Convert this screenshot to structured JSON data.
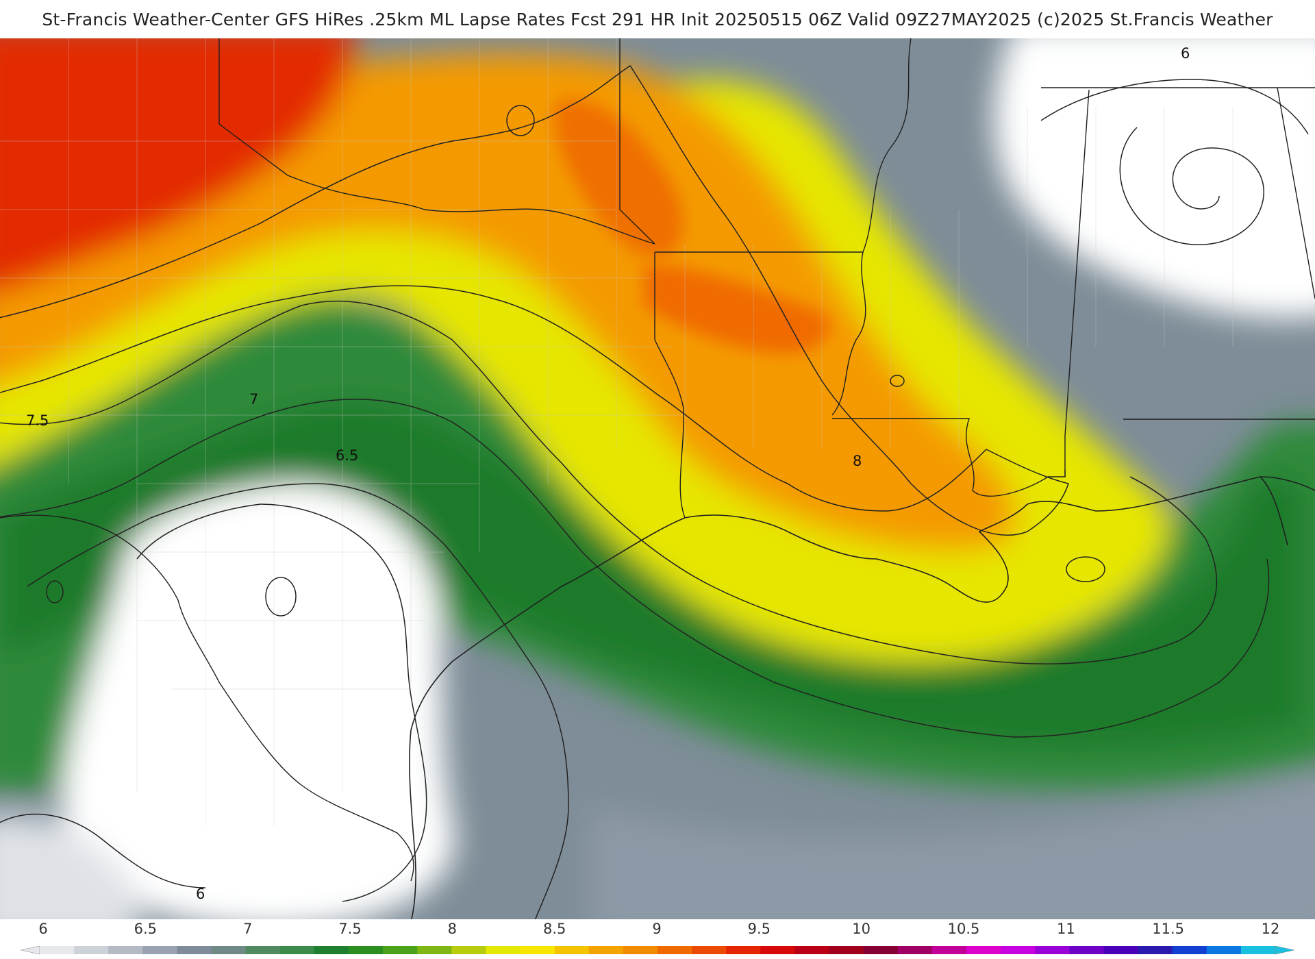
{
  "header": {
    "title": "St-Francis Weather-Center GFS HiRes .25km ML Lapse Rates  Fcst 291 HR Init 20250515 06Z  Valid 09Z27MAY2025    (c)2025 St.Francis Weather"
  },
  "map": {
    "contour_labels": [
      "6",
      "6.5",
      "7",
      "7.5",
      "8",
      "6"
    ]
  },
  "legend": {
    "ticks": [
      "6",
      "6.5",
      "7",
      "7.5",
      "8",
      "8.5",
      "9",
      "9.5",
      "10",
      "10.5",
      "11",
      "11.5",
      "12"
    ],
    "colors": [
      "#e6e8ec",
      "#cdd2d9",
      "#b3bac4",
      "#99a2b0",
      "#7f8b9b",
      "#6f8a86",
      "#4f8a60",
      "#3a8a4a",
      "#1e7f2e",
      "#2a8f1f",
      "#4aa21a",
      "#7fb714",
      "#b6cc0c",
      "#e3e800",
      "#f7e600",
      "#f5c400",
      "#f4a400",
      "#f38b00",
      "#f06a00",
      "#ec4a00",
      "#e52400",
      "#d60a0a",
      "#bb0016",
      "#a0001c",
      "#870033",
      "#a00066",
      "#c20099",
      "#dd00cc",
      "#c700e0",
      "#9a00d8",
      "#6f00c8",
      "#4a00b8",
      "#2a1ab0",
      "#1240d0",
      "#0a78e0",
      "#19c0e0"
    ]
  }
}
